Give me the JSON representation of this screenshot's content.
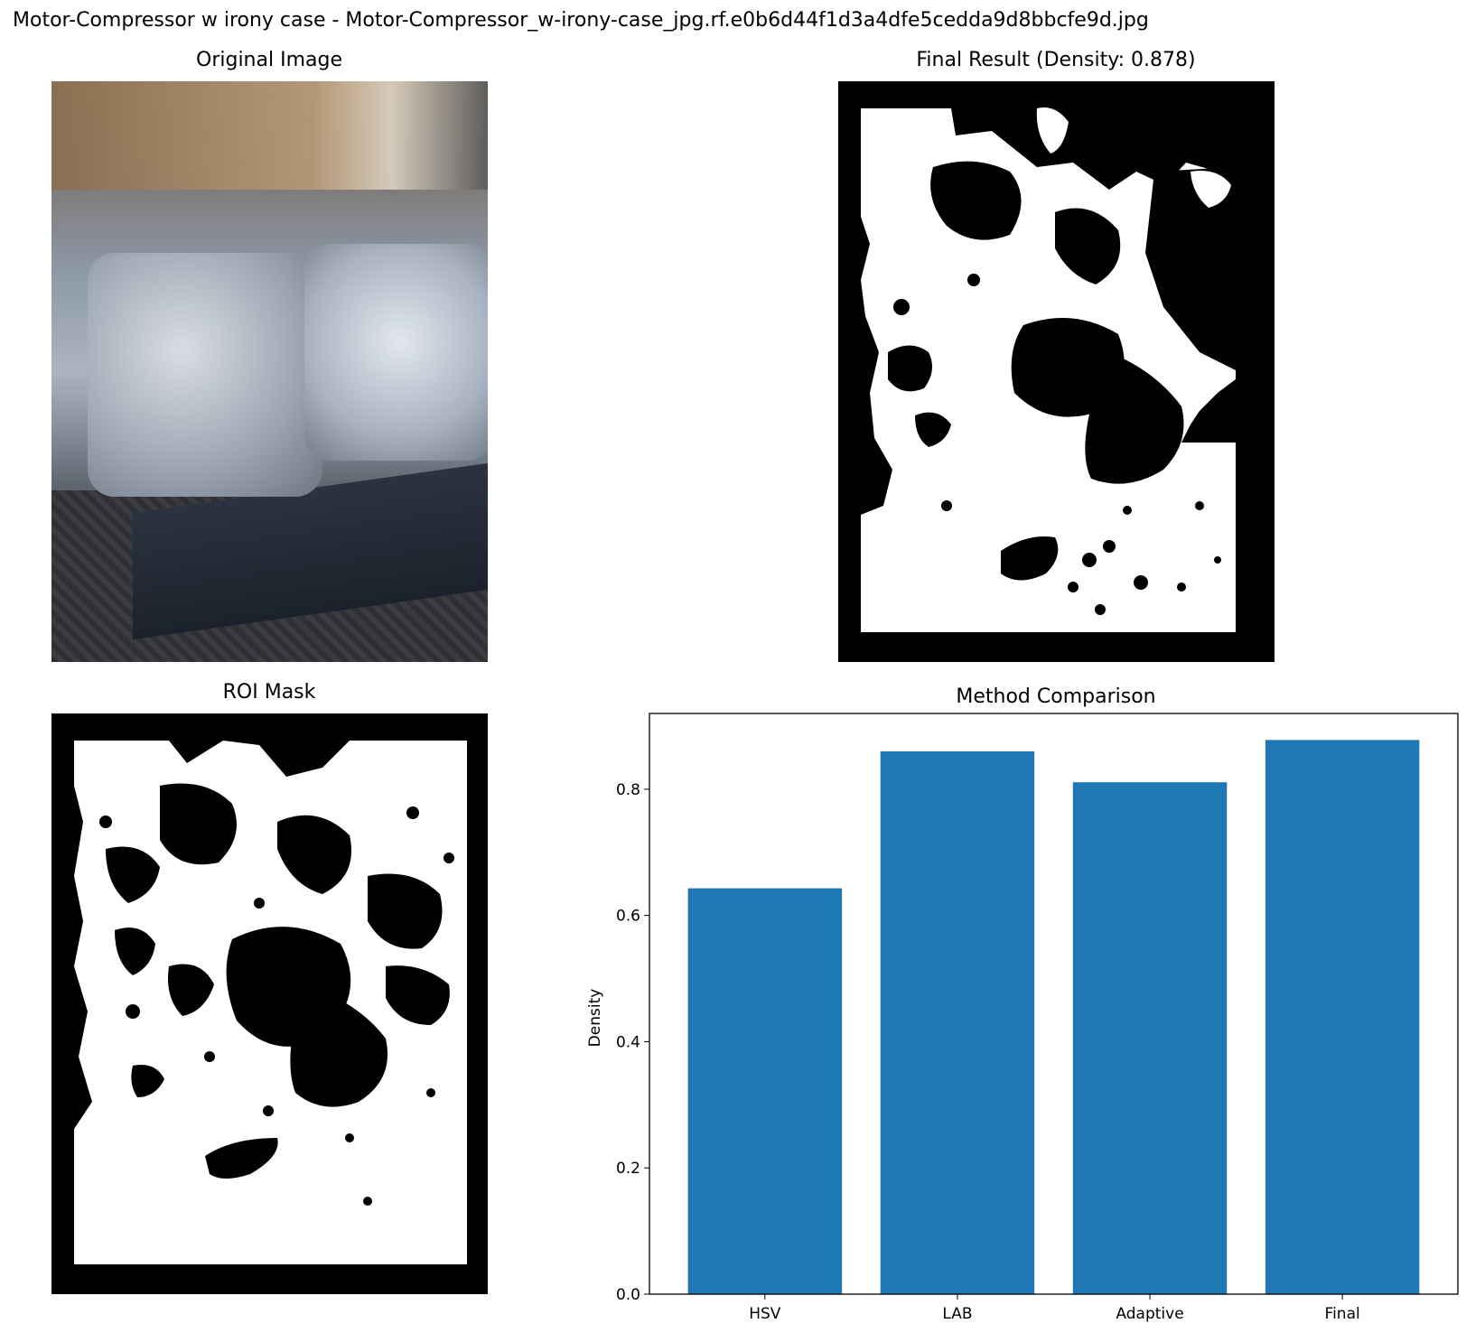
{
  "suptitle": "Motor-Compressor w irony case - Motor-Compressor_w-irony-case_jpg.rf.e0b6d44f1d3a4dfe5cedda9d8bbcfe9d.jpg",
  "panels": {
    "original": {
      "title": "Original Image"
    },
    "final": {
      "title": "Final Result (Density: 0.878)"
    },
    "roi": {
      "title": "ROI Mask"
    }
  },
  "chart_data": {
    "type": "bar",
    "title": "Method Comparison",
    "xlabel": "",
    "ylabel": "Density",
    "categories": [
      "HSV",
      "LAB",
      "Adaptive",
      "Final"
    ],
    "values": [
      0.643,
      0.86,
      0.811,
      0.878
    ],
    "ylim": [
      0,
      0.92
    ],
    "yticks": [
      "0.0",
      "0.2",
      "0.4",
      "0.6",
      "0.8"
    ],
    "bar_color": "#1f77b4",
    "grid": false
  }
}
